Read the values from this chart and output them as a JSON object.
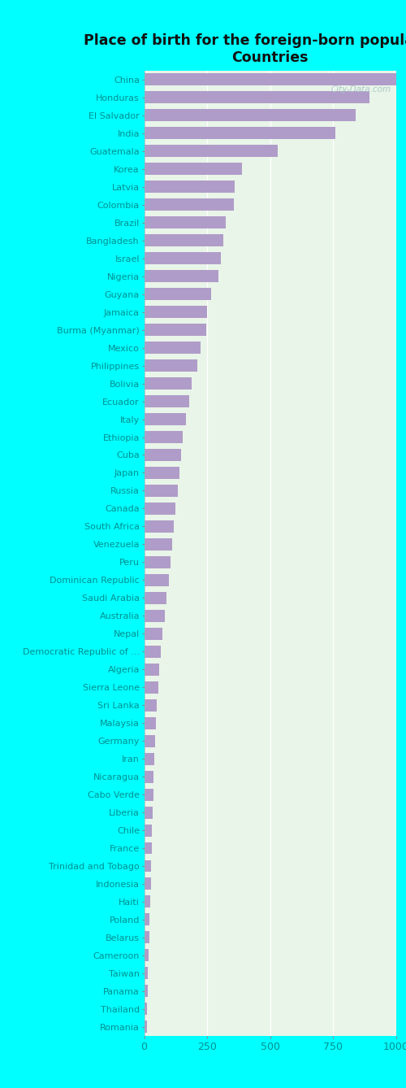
{
  "title": "Place of birth for the foreign-born population -\nCountries",
  "categories": [
    "China",
    "Honduras",
    "El Salvador",
    "India",
    "Guatemala",
    "Korea",
    "Latvia",
    "Colombia",
    "Brazil",
    "Bangladesh",
    "Israel",
    "Nigeria",
    "Guyana",
    "Jamaica",
    "Burma (Myanmar)",
    "Mexico",
    "Philippines",
    "Bolivia",
    "Ecuador",
    "Italy",
    "Ethiopia",
    "Cuba",
    "Japan",
    "Russia",
    "Canada",
    "South Africa",
    "Venezuela",
    "Peru",
    "Dominican Republic",
    "Saudi Arabia",
    "Australia",
    "Nepal",
    "Democratic Republic of ...",
    "Algeria",
    "Sierra Leone",
    "Sri Lanka",
    "Malaysia",
    "Germany",
    "Iran",
    "Nicaragua",
    "Cabo Verde",
    "Liberia",
    "Chile",
    "France",
    "Trinidad and Tobago",
    "Indonesia",
    "Haiti",
    "Poland",
    "Belarus",
    "Cameroon",
    "Taiwan",
    "Panama",
    "Thailand",
    "Romania"
  ],
  "values": [
    1000,
    895,
    840,
    760,
    530,
    390,
    360,
    355,
    325,
    315,
    305,
    295,
    265,
    250,
    248,
    225,
    210,
    190,
    178,
    165,
    152,
    148,
    140,
    133,
    125,
    118,
    112,
    105,
    98,
    90,
    82,
    72,
    65,
    60,
    55,
    50,
    46,
    43,
    41,
    38,
    36,
    34,
    32,
    30,
    28,
    26,
    24,
    22,
    20,
    18,
    16,
    14,
    12,
    10
  ],
  "bar_color": "#b09cc8",
  "bg_left": "#00ffff",
  "bg_plot_topleft": "#c8e6c9",
  "bg_plot_bottomright": "#f5fff5",
  "title_color": "#111111",
  "label_color": "#009090",
  "tick_color": "#009090",
  "xlim": [
    0,
    1000
  ],
  "xticks": [
    0,
    250,
    500,
    750,
    1000
  ],
  "watermark": "City-Data.com",
  "watermark_color": "#aac8c8"
}
